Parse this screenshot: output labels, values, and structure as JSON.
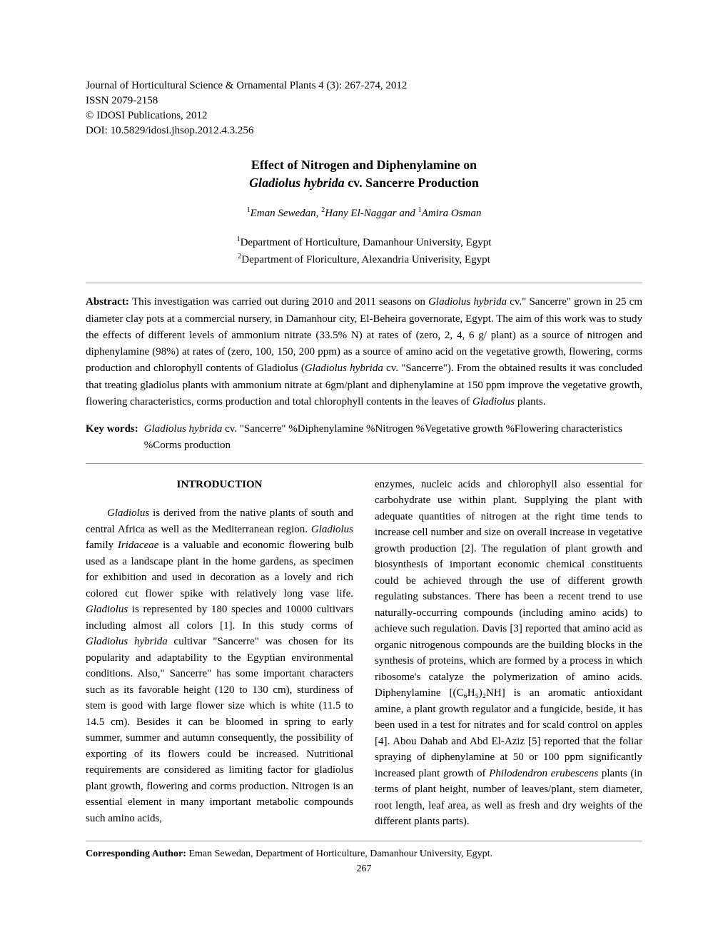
{
  "header": {
    "journal": "Journal of Horticultural Science & Ornamental Plants 4 (3): 267-274, 2012",
    "issn": "ISSN 2079-2158",
    "publisher": "© IDOSI Publications, 2012",
    "doi": "DOI: 10.5829/idosi.jhsop.2012.4.3.256"
  },
  "title": {
    "line1": "Effect of Nitrogen and Diphenylamine on",
    "line2_italic": "Gladiolus hybrida",
    "line2_rest": " cv. Sancerre Production"
  },
  "authors": {
    "a1_sup": "1",
    "a1": "Eman Sewedan, ",
    "a2_sup": "2",
    "a2": "Hany El-Naggar and ",
    "a3_sup": "1",
    "a3": "Amira Osman"
  },
  "affiliations": {
    "aff1_sup": "1",
    "aff1": "Department of Horticulture, Damanhour University, Egypt",
    "aff2_sup": "2",
    "aff2": "Department of Floriculture, Alexandria Univerisity, Egypt"
  },
  "abstract": {
    "label": "Abstract: ",
    "p1": "This investigation was carried out during 2010 and 2011 seasons on ",
    "i1": "Gladiolus hybrida",
    "p2": " cv.\" Sancerre\" grown in 25 cm diameter clay pots at a commercial nursery, in Damanhour city, El-Beheira governorate, Egypt. The aim of this work was to study the effects of different levels of  ammonium  nitrate (33.5% N) at rates of (zero, 2, 4, 6 g/ plant) as a  source  of  nitrogen  and  diphenylamine  (98%)  at  rates  of (zero, 100, 150, 200 ppm) as a source of amino acid on the vegetative growth, flowering, corms production and chlorophyll contents of Gladiolus (",
    "i2": "Gladiolus hybrida",
    "p3": " cv. \"Sancerre\"). From the obtained results it was concluded that treating gladiolus plants with ammonium nitrate at 6gm/plant and diphenylamine at 150 ppm improve the vegetative growth, flowering characteristics, corms production and total chlorophyll contents in the leaves of ",
    "i3": "Gladiolus",
    "p4": " plants."
  },
  "keywords": {
    "label": "Key words:",
    "i1": "Gladiolus hybrida",
    "text": " cv. \"Sancerre\" %Diphenylamine %Nitrogen %Vegetative growth %Flowering characteristics %Corms production"
  },
  "intro": {
    "heading": "INTRODUCTION",
    "col1": {
      "i1": "Gladiolus",
      "t1": " is derived from the native plants of south and central Africa as well as the Mediterranean region. ",
      "i2": "Gladiolus",
      "t2": " family ",
      "i3": "Iridaceae",
      "t3": " is a valuable and economic flowering bulb used as a landscape plant in the home gardens, as specimen for exhibition and used in decoration as a lovely and rich colored cut flower spike with relatively long vase life.  ",
      "i4": "Gladiolus",
      "t4": "  is  represented by 180 species and 10000 cultivars including almost all colors [1]. In this study corms of ",
      "i5": "Gladiolus hybrida",
      "t5": " cultivar \"Sancerre\" was chosen for its popularity and adaptability to the Egyptian environmental conditions. Also,\" Sancerre\" has some important characters such as its favorable height (120 to 130 cm), sturdiness of stem is good with large flower size which is white (11.5 to 14.5 cm). Besides it can be bloomed in spring to early summer, summer and autumn consequently, the possibility of exporting of its flowers could be increased. Nutritional requirements are considered as limiting factor for gladiolus plant growth, flowering and corms production. Nitrogen is an essential element in many important metabolic compounds such amino acids,"
    },
    "col2": {
      "t1": "enzymes, nucleic acids and chlorophyll also essential for carbohydrate use within plant. Supplying the plant with adequate quantities of nitrogen at the right time tends to increase cell number and size on overall increase in vegetative growth production [2]. The regulation of plant growth and biosynthesis of important economic chemical constituents could be achieved through the use of different growth regulating substances. There has been a recent trend to use naturally-occurring compounds (including amino acids) to achieve  such  regulation. Davis [3] reported that amino acid as organic nitrogenous compounds are the building blocks in the synthesis of proteins, which are formed by a process in which ribosome's catalyze the polymerization of amino acids. Diphenylamine [(C₆H₅)₂NH] is an aromatic antioxidant amine, a plant growth regulator and a fungicide, beside, it has been used in a test for nitrates and for scald control on apples [4]. Abou Dahab and Abd El-Aziz [5] reported that the foliar spraying of diphenylamine at 50 or 100 ppm significantly increased plant growth of ",
      "i1": "Philodendron erubescens",
      "t2": " plants (in terms of plant height, number of leaves/plant, stem diameter, root length, leaf area, as well as fresh and dry weights of the different plants parts)."
    }
  },
  "footer": {
    "corr_label": "Corresponding Author:",
    "corr_text": " Eman Sewedan, Department of Horticulture, Damanhour University, Egypt.",
    "page": "267"
  },
  "styles": {
    "page_bg": "#ffffff",
    "text_color": "#000000",
    "rule_color": "#999999",
    "body_fontsize": 15,
    "title_fontsize": 18,
    "font_family": "Times New Roman"
  }
}
